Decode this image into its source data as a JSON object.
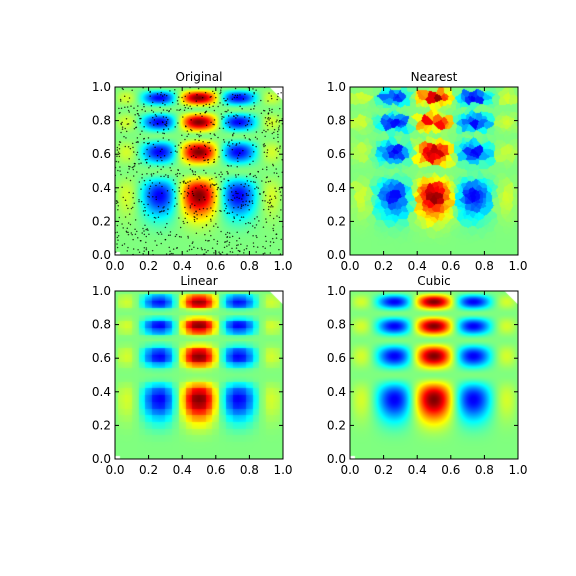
{
  "chart_data": [
    {
      "type": "heatmap",
      "title": "Original",
      "xlim": [
        0.0,
        1.0
      ],
      "ylim": [
        0.0,
        1.0
      ],
      "xticks": [
        "0.0",
        "0.2",
        "0.4",
        "0.6",
        "0.8",
        "1.0"
      ],
      "yticks": [
        "0.0",
        "0.2",
        "0.4",
        "0.6",
        "0.8",
        "1.0"
      ],
      "colormap": "jet",
      "field": "grid interpolation test function (values 0 to 1)",
      "sample_points_shown": true
    },
    {
      "type": "heatmap",
      "title": "Nearest",
      "xlim": [
        0.0,
        1.0
      ],
      "ylim": [
        0.0,
        1.0
      ],
      "xticks": [
        "0.0",
        "0.2",
        "0.4",
        "0.6",
        "0.8",
        "1.0"
      ],
      "yticks": [
        "0.0",
        "0.2",
        "0.4",
        "0.6",
        "0.8",
        "1.0"
      ],
      "colormap": "jet",
      "interpolation": "nearest"
    },
    {
      "type": "heatmap",
      "title": "Linear",
      "xlim": [
        0.0,
        1.0
      ],
      "ylim": [
        0.0,
        1.0
      ],
      "xticks": [
        "0.0",
        "0.2",
        "0.4",
        "0.6",
        "0.8",
        "1.0"
      ],
      "yticks": [
        "0.0",
        "0.2",
        "0.4",
        "0.6",
        "0.8",
        "1.0"
      ],
      "colormap": "jet",
      "interpolation": "linear"
    },
    {
      "type": "heatmap",
      "title": "Cubic",
      "xlim": [
        0.0,
        1.0
      ],
      "ylim": [
        0.0,
        1.0
      ],
      "xticks": [
        "0.0",
        "0.2",
        "0.4",
        "0.6",
        "0.8",
        "1.0"
      ],
      "yticks": [
        "0.0",
        "0.2",
        "0.4",
        "0.6",
        "0.8",
        "1.0"
      ],
      "colormap": "jet",
      "interpolation": "cubic"
    }
  ]
}
